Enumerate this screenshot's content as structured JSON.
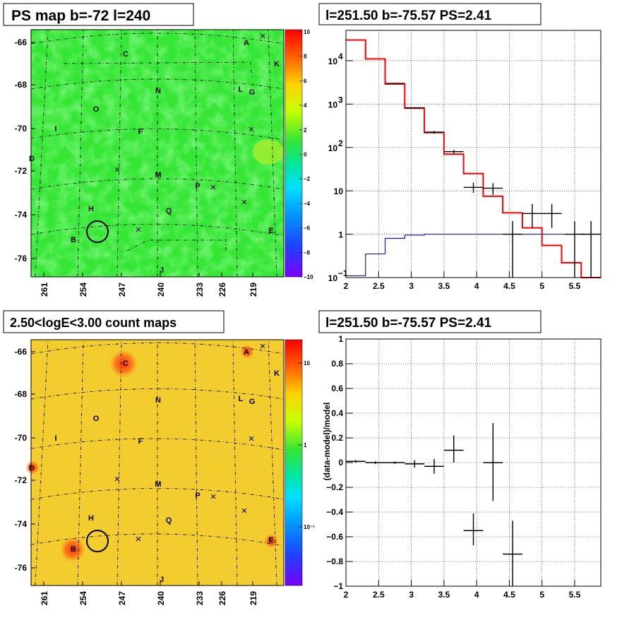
{
  "panels": {
    "ps_map_title": "PS map b=-72 l=240",
    "count_map_title": "2.50<logE<3.00 count maps",
    "spectrum_title": "l=251.50 b=-75.57 PS=2.41",
    "residual_title": "l=251.50 b=-75.57 PS=2.41"
  },
  "maps": {
    "lat_ticks": [
      "-66",
      "-68",
      "-70",
      "-72",
      "-74",
      "-76"
    ],
    "lon_ticks": [
      "261",
      "254",
      "247",
      "240",
      "233",
      "226",
      "219"
    ],
    "source_labels": [
      "A",
      "K",
      "C",
      "N",
      "L",
      "G",
      "O",
      "I",
      "F",
      "D",
      "M",
      "P",
      "H",
      "Q",
      "E",
      "B",
      "J"
    ],
    "ps_palette_ticks": [
      "10",
      "8",
      "6",
      "4",
      "2",
      "0",
      "−2",
      "−4",
      "−6",
      "−8",
      "−10"
    ],
    "count_palette_ticks": [
      "10",
      "1",
      "10⁻¹"
    ],
    "colors": {
      "ps_background": "#35e635",
      "count_background": "#f2d21e",
      "hotspot": "#ff3a0a"
    }
  },
  "chart_data": [
    {
      "type": "line",
      "name": "spectrum",
      "title": "l=251.50 b=-75.57 PS=2.41",
      "xlabel": "",
      "ylabel": "",
      "xlim": [
        2,
        5.9
      ],
      "ylim": [
        0.1,
        50000
      ],
      "y_scale": "log",
      "grid": true,
      "x_ticks": [
        "2",
        "2.5",
        "3",
        "3.5",
        "4",
        "4.5",
        "5",
        "5.5"
      ],
      "y_ticks": [
        {
          "mant": "10",
          "exp": "−1",
          "value": 0.1
        },
        {
          "mant": "1",
          "exp": "",
          "value": 1
        },
        {
          "mant": "10",
          "exp": "",
          "value": 10
        },
        {
          "mant": "10",
          "exp": "2",
          "value": 100
        },
        {
          "mant": "10",
          "exp": "3",
          "value": 1000
        },
        {
          "mant": "10",
          "exp": "4",
          "value": 10000
        }
      ],
      "bin_edges": [
        2.0,
        2.3,
        2.6,
        2.9,
        3.2,
        3.5,
        3.8,
        4.1,
        4.4,
        4.7,
        5.0,
        5.3,
        5.6,
        5.9
      ],
      "series": [
        {
          "role": "total-model",
          "color": "#ff0000",
          "values": [
            30000,
            11000,
            2900,
            800,
            220,
            70,
            25,
            7.5,
            3.1,
            1.4,
            0.55,
            0.22,
            0.1
          ]
        },
        {
          "role": "point-source-model",
          "color": "#1a1aa6",
          "values": [
            0.11,
            0.35,
            0.8,
            0.95,
            1.0,
            1.0,
            1.0,
            1.0,
            1.0,
            1.0,
            1.0,
            1.0,
            1.0
          ]
        },
        {
          "role": "data",
          "color": "#000000",
          "points": [
            {
              "x": 2.75,
              "y": 3000,
              "ylo": 2900,
              "yhi": 3100
            },
            {
              "x": 3.05,
              "y": 820,
              "ylo": 790,
              "yhi": 850
            },
            {
              "x": 3.35,
              "y": 225,
              "ylo": 210,
              "yhi": 240
            },
            {
              "x": 3.65,
              "y": 80,
              "ylo": 72,
              "yhi": 88
            },
            {
              "x": 3.95,
              "y": 12,
              "ylo": 9,
              "yhi": 15.5
            },
            {
              "x": 4.25,
              "y": 11.5,
              "ylo": 8,
              "yhi": 15
            },
            {
              "x": 4.55,
              "y": 1.0,
              "ylo": 0.1,
              "yhi": 2.0
            },
            {
              "x": 4.85,
              "y": 3.0,
              "ylo": 1.4,
              "yhi": 5.0
            },
            {
              "x": 5.15,
              "y": 3.0,
              "ylo": 1.4,
              "yhi": 5.0
            },
            {
              "x": 5.5,
              "y": 1.0,
              "ylo": 0.1,
              "yhi": 2.0
            },
            {
              "x": 5.75,
              "y": 1.0,
              "ylo": 0.1,
              "yhi": 2.0
            }
          ]
        }
      ]
    },
    {
      "type": "scatter",
      "name": "residuals",
      "title": "l=251.50 b=-75.57 PS=2.41",
      "xlabel": "",
      "ylabel": "(data-model)/model",
      "xlim": [
        2,
        5.9
      ],
      "ylim": [
        -1,
        1
      ],
      "grid": true,
      "x_ticks": [
        "2",
        "2.5",
        "3",
        "3.5",
        "4",
        "4.5",
        "5",
        "5.5"
      ],
      "y_ticks": [
        "−1",
        "−0.8",
        "−0.6",
        "−0.4",
        "−0.2",
        "0",
        "0.2",
        "0.4",
        "0.6",
        "0.8",
        "1"
      ],
      "points": [
        {
          "x": 2.15,
          "y": 0.01,
          "ylo": 0.0,
          "yhi": 0.02
        },
        {
          "x": 2.45,
          "y": 0.0,
          "ylo": -0.01,
          "yhi": 0.01
        },
        {
          "x": 2.75,
          "y": 0.0,
          "ylo": -0.01,
          "yhi": 0.01
        },
        {
          "x": 3.05,
          "y": -0.01,
          "ylo": -0.04,
          "yhi": 0.02
        },
        {
          "x": 3.35,
          "y": -0.03,
          "ylo": -0.09,
          "yhi": 0.03
        },
        {
          "x": 3.65,
          "y": 0.1,
          "ylo": 0.0,
          "yhi": 0.22
        },
        {
          "x": 3.95,
          "y": -0.55,
          "ylo": -0.67,
          "yhi": -0.41
        },
        {
          "x": 4.25,
          "y": 0.0,
          "ylo": -0.31,
          "yhi": 0.32
        },
        {
          "x": 4.55,
          "y": -0.74,
          "ylo": -1.0,
          "yhi": -0.47
        }
      ]
    }
  ]
}
